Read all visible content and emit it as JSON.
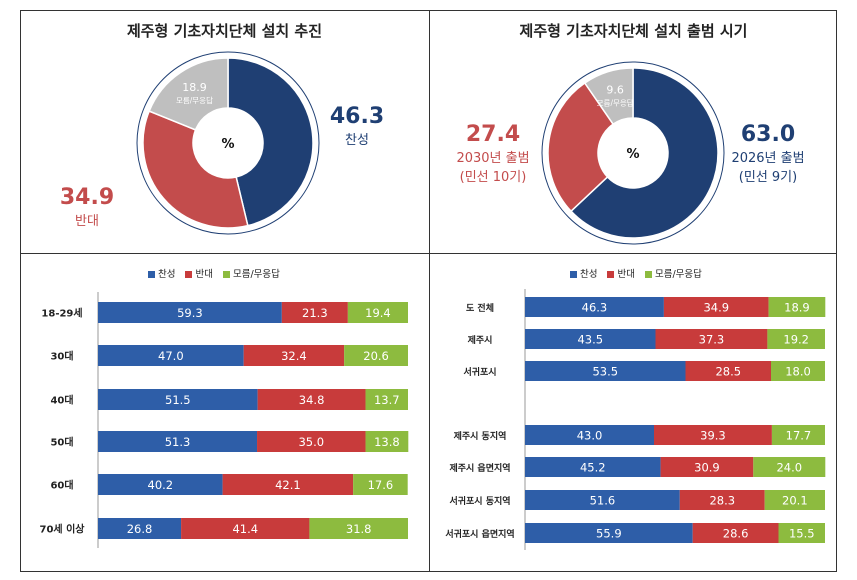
{
  "colors": {
    "support": "#2e5ea8",
    "oppose": "#c83b3b",
    "unknown": "#8dbb3f",
    "donut_support": "#1f3f73",
    "donut_oppose": "#c34c4c",
    "donut_unknown": "#bfbfbf",
    "label_support": "#1f3f73",
    "label_oppose": "#c34c4c"
  },
  "panel1": {
    "title": "제주형 기초자치단체 설치 추진",
    "center": "%",
    "support": {
      "value": "46.3",
      "label": "찬성"
    },
    "oppose": {
      "value": "34.9",
      "label": "반대"
    },
    "unknown": {
      "value": "18.9",
      "label": "모름/무응답"
    }
  },
  "panel2": {
    "title": "제주형 기초자치단체 설치 출범 시기",
    "center": "%",
    "y2026": {
      "value": "63.0",
      "label": "2026년 출범",
      "sub": "(민선 9기)"
    },
    "y2030": {
      "value": "27.4",
      "label": "2030년 출범",
      "sub": "(민선 10기)"
    },
    "unknown": {
      "value": "9.6",
      "label": "모름/무응답"
    }
  },
  "legend": {
    "support": "찬성",
    "oppose": "반대",
    "unknown": "모름/무응답"
  },
  "chart_data": [
    {
      "type": "pie",
      "title": "제주형 기초자치단체 설치 추진",
      "categories": [
        "찬성",
        "반대",
        "모름/무응답"
      ],
      "values": [
        46.3,
        34.9,
        18.9
      ]
    },
    {
      "type": "pie",
      "title": "제주형 기초자치단체 설치 출범 시기",
      "categories": [
        "2026년 출범 (민선 9기)",
        "2030년 출범 (민선 10기)",
        "모름/무응답"
      ],
      "values": [
        63.0,
        27.4,
        9.6
      ]
    },
    {
      "type": "bar",
      "stacked": true,
      "orientation": "horizontal",
      "categories": [
        "18-29세",
        "30대",
        "40대",
        "50대",
        "60대",
        "70세 이상"
      ],
      "series": [
        {
          "name": "찬성",
          "values": [
            59.3,
            47.0,
            51.5,
            51.3,
            40.2,
            26.8
          ]
        },
        {
          "name": "반대",
          "values": [
            21.3,
            32.4,
            34.8,
            35.0,
            42.1,
            41.4
          ]
        },
        {
          "name": "모름/무응답",
          "values": [
            19.4,
            20.6,
            13.7,
            13.8,
            17.6,
            31.8
          ]
        }
      ]
    },
    {
      "type": "bar",
      "stacked": true,
      "orientation": "horizontal",
      "categories": [
        "도 전체",
        "제주시",
        "서귀포시",
        "제주시 동지역",
        "제주시 읍면지역",
        "서귀포시 동지역",
        "서귀포시 읍면지역"
      ],
      "series": [
        {
          "name": "찬성",
          "values": [
            46.3,
            43.5,
            53.5,
            43.0,
            45.2,
            51.6,
            55.9
          ]
        },
        {
          "name": "반대",
          "values": [
            34.9,
            37.3,
            28.5,
            39.3,
            30.9,
            28.3,
            28.6
          ]
        },
        {
          "name": "모름/무응답",
          "values": [
            18.9,
            19.2,
            18.0,
            17.7,
            24.0,
            20.1,
            15.5
          ]
        }
      ]
    }
  ]
}
